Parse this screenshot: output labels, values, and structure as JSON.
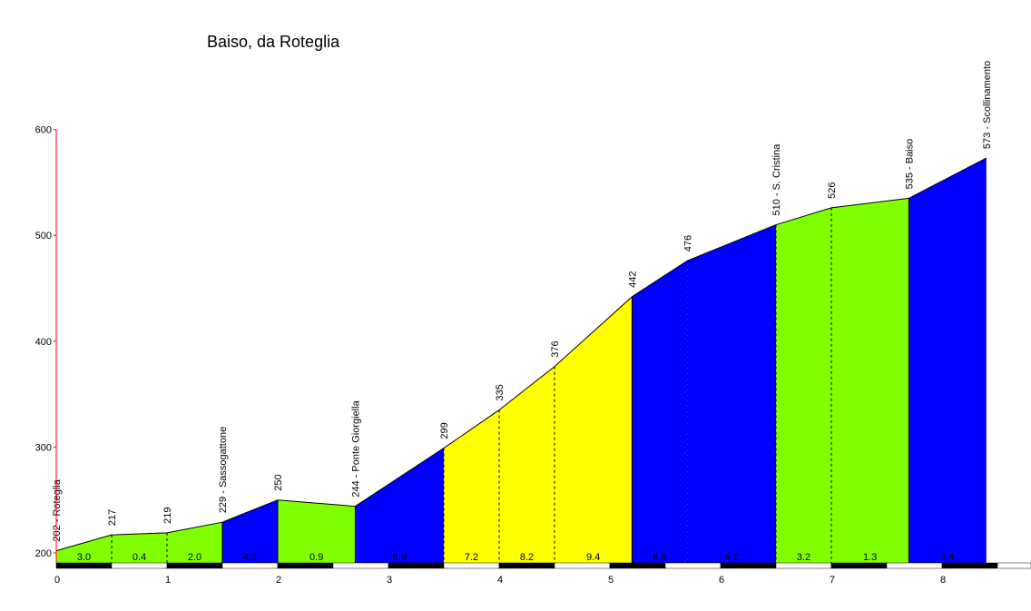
{
  "chart_data": {
    "type": "area",
    "title": "Baiso, da Roteglia",
    "xlabel": "",
    "ylabel": "",
    "xlim": [
      0,
      8.4
    ],
    "ylim": [
      190,
      600
    ],
    "x_ticks": [
      "0",
      "1",
      "2",
      "3",
      "4",
      "5",
      "6",
      "7",
      "8"
    ],
    "y_ticks": [
      "600",
      "500",
      "400",
      "300",
      "200"
    ],
    "grid": false,
    "profile": [
      {
        "x": 0.0,
        "y": 202,
        "label": "202 - Roteglia",
        "marker": false
      },
      {
        "x": 0.5,
        "y": 217,
        "label": "217",
        "marker": true
      },
      {
        "x": 1.0,
        "y": 219,
        "label": "219",
        "marker": true
      },
      {
        "x": 1.5,
        "y": 229,
        "label": "229 - Sassogattone",
        "marker": false
      },
      {
        "x": 2.0,
        "y": 250,
        "label": "250",
        "marker": false
      },
      {
        "x": 2.7,
        "y": 244,
        "label": "244 - Ponte Giorgiella",
        "marker": false
      },
      {
        "x": 3.5,
        "y": 299,
        "label": "299",
        "marker": true
      },
      {
        "x": 4.0,
        "y": 335,
        "label": "335",
        "marker": true
      },
      {
        "x": 4.5,
        "y": 376,
        "label": "376",
        "marker": true
      },
      {
        "x": 5.2,
        "y": 442,
        "label": "442",
        "marker": false
      },
      {
        "x": 5.7,
        "y": 476,
        "label": "476",
        "marker": true
      },
      {
        "x": 6.5,
        "y": 510,
        "label": "510 - S. Cristina",
        "marker": true
      },
      {
        "x": 7.0,
        "y": 526,
        "label": "526",
        "marker": true
      },
      {
        "x": 7.7,
        "y": 535,
        "label": "535 - Baiso",
        "marker": false
      },
      {
        "x": 8.4,
        "y": 573,
        "label": "573 - Scollinamento",
        "marker": false
      }
    ],
    "segments": [
      {
        "from": 0.0,
        "to": 0.5,
        "gradient": "3.0",
        "color": "#80ff00"
      },
      {
        "from": 0.5,
        "to": 1.0,
        "gradient": "0.4",
        "color": "#80ff00"
      },
      {
        "from": 1.0,
        "to": 1.5,
        "gradient": "2.0",
        "color": "#80ff00"
      },
      {
        "from": 1.5,
        "to": 2.0,
        "gradient": "4.2",
        "color": "#0000ff"
      },
      {
        "from": 2.0,
        "to": 2.7,
        "gradient": "0.9",
        "color": "#80ff00"
      },
      {
        "from": 2.7,
        "to": 3.5,
        "gradient": "6.9",
        "color": "#0000ff"
      },
      {
        "from": 3.5,
        "to": 4.0,
        "gradient": "7.2",
        "color": "#ffff00"
      },
      {
        "from": 4.0,
        "to": 4.5,
        "gradient": "8.2",
        "color": "#ffff00"
      },
      {
        "from": 4.5,
        "to": 5.2,
        "gradient": "9.4",
        "color": "#ffff00"
      },
      {
        "from": 5.2,
        "to": 5.7,
        "gradient": "6.8",
        "color": "#0000ff"
      },
      {
        "from": 5.7,
        "to": 6.5,
        "gradient": "4.2",
        "color": "#0000ff"
      },
      {
        "from": 6.5,
        "to": 7.0,
        "gradient": "3.2",
        "color": "#80ff00"
      },
      {
        "from": 7.0,
        "to": 7.7,
        "gradient": "1.3",
        "color": "#80ff00"
      },
      {
        "from": 7.7,
        "to": 8.4,
        "gradient": "5.4",
        "color": "#0000ff"
      }
    ],
    "colors": {
      "axis": "#ff0000",
      "outline": "#000000",
      "stripe_dark": "#000000",
      "stripe_light": "#ffffff"
    }
  }
}
